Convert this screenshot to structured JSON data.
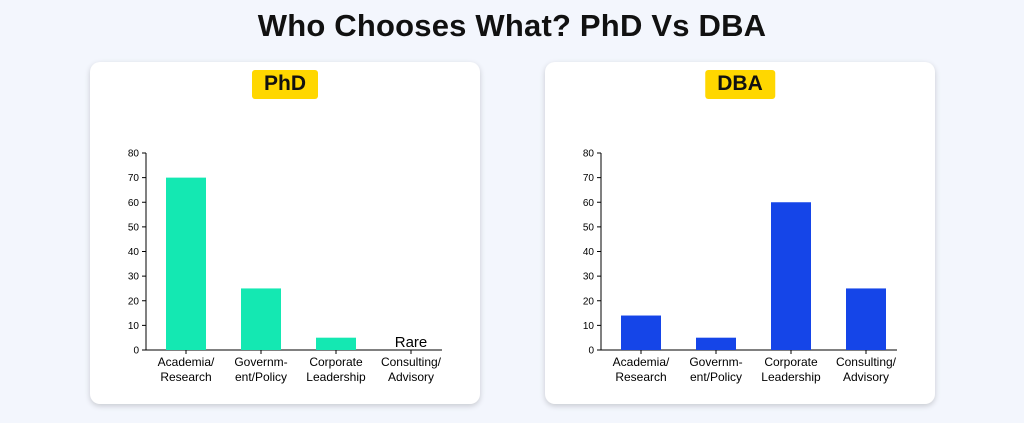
{
  "page_title": "Who Chooses What? PhD Vs DBA",
  "chart_data": [
    {
      "type": "bar",
      "label": "PhD",
      "categories": [
        [
          "Academia/",
          "Research"
        ],
        [
          "Governm-",
          "ent/Policy"
        ],
        [
          "Corporate",
          "Leadership"
        ],
        [
          "Consulting/",
          "Advisory"
        ]
      ],
      "values": [
        70,
        25,
        5,
        0
      ],
      "annotations": [
        "",
        "",
        "",
        "Rare"
      ],
      "ylim": [
        0,
        80
      ],
      "yticks": [
        0,
        10,
        20,
        30,
        40,
        50,
        60,
        70,
        80
      ],
      "color": "#14e8b2"
    },
    {
      "type": "bar",
      "label": "DBA",
      "categories": [
        [
          "Academia/",
          "Research"
        ],
        [
          "Governm-",
          "ent/Policy"
        ],
        [
          "Corporate",
          "Leadership"
        ],
        [
          "Consulting/",
          "Advisory"
        ]
      ],
      "values": [
        14,
        5,
        60,
        25
      ],
      "annotations": [
        "",
        "",
        "",
        ""
      ],
      "ylim": [
        0,
        80
      ],
      "yticks": [
        0,
        10,
        20,
        30,
        40,
        50,
        60,
        70,
        80
      ],
      "color": "#1545e8"
    }
  ]
}
